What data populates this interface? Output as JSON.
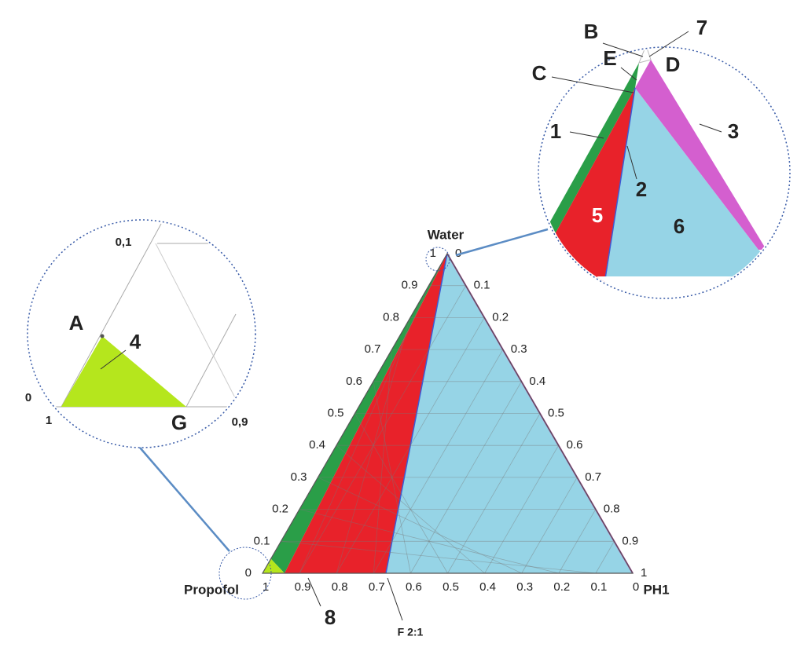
{
  "vertices": {
    "top": "Water",
    "left": "Propofol",
    "right": "PH1"
  },
  "left_axis": [
    "0",
    "0.1",
    "0.2",
    "0.3",
    "0.4",
    "0.5",
    "0.6",
    "0.7",
    "0.8",
    "0.9",
    "1"
  ],
  "right_axis": [
    "0",
    "0.1",
    "0.2",
    "0.3",
    "0.4",
    "0.5",
    "0.6",
    "0.7",
    "0.8",
    "0.9",
    "1"
  ],
  "bottom_axis": [
    "1",
    "0.9",
    "0.8",
    "0.7",
    "0.6",
    "0.5",
    "0.4",
    "0.3",
    "0.2",
    "0.1",
    "0"
  ],
  "callouts": {
    "region_8": "8",
    "line_f": "F 2:1"
  },
  "zoom_left": {
    "tick_top": "0,1",
    "tick_left_a": "0",
    "tick_left_b": "1",
    "tick_right": "0,9",
    "point_a": "A",
    "point_g": "G",
    "region_4": "4"
  },
  "zoom_right": {
    "point_b": "B",
    "point_c": "C",
    "point_d": "D",
    "point_e": "E",
    "label_7": "7",
    "line_1": "1",
    "line_2": "2",
    "line_3": "3",
    "region_5": "5",
    "region_6": "6"
  }
}
